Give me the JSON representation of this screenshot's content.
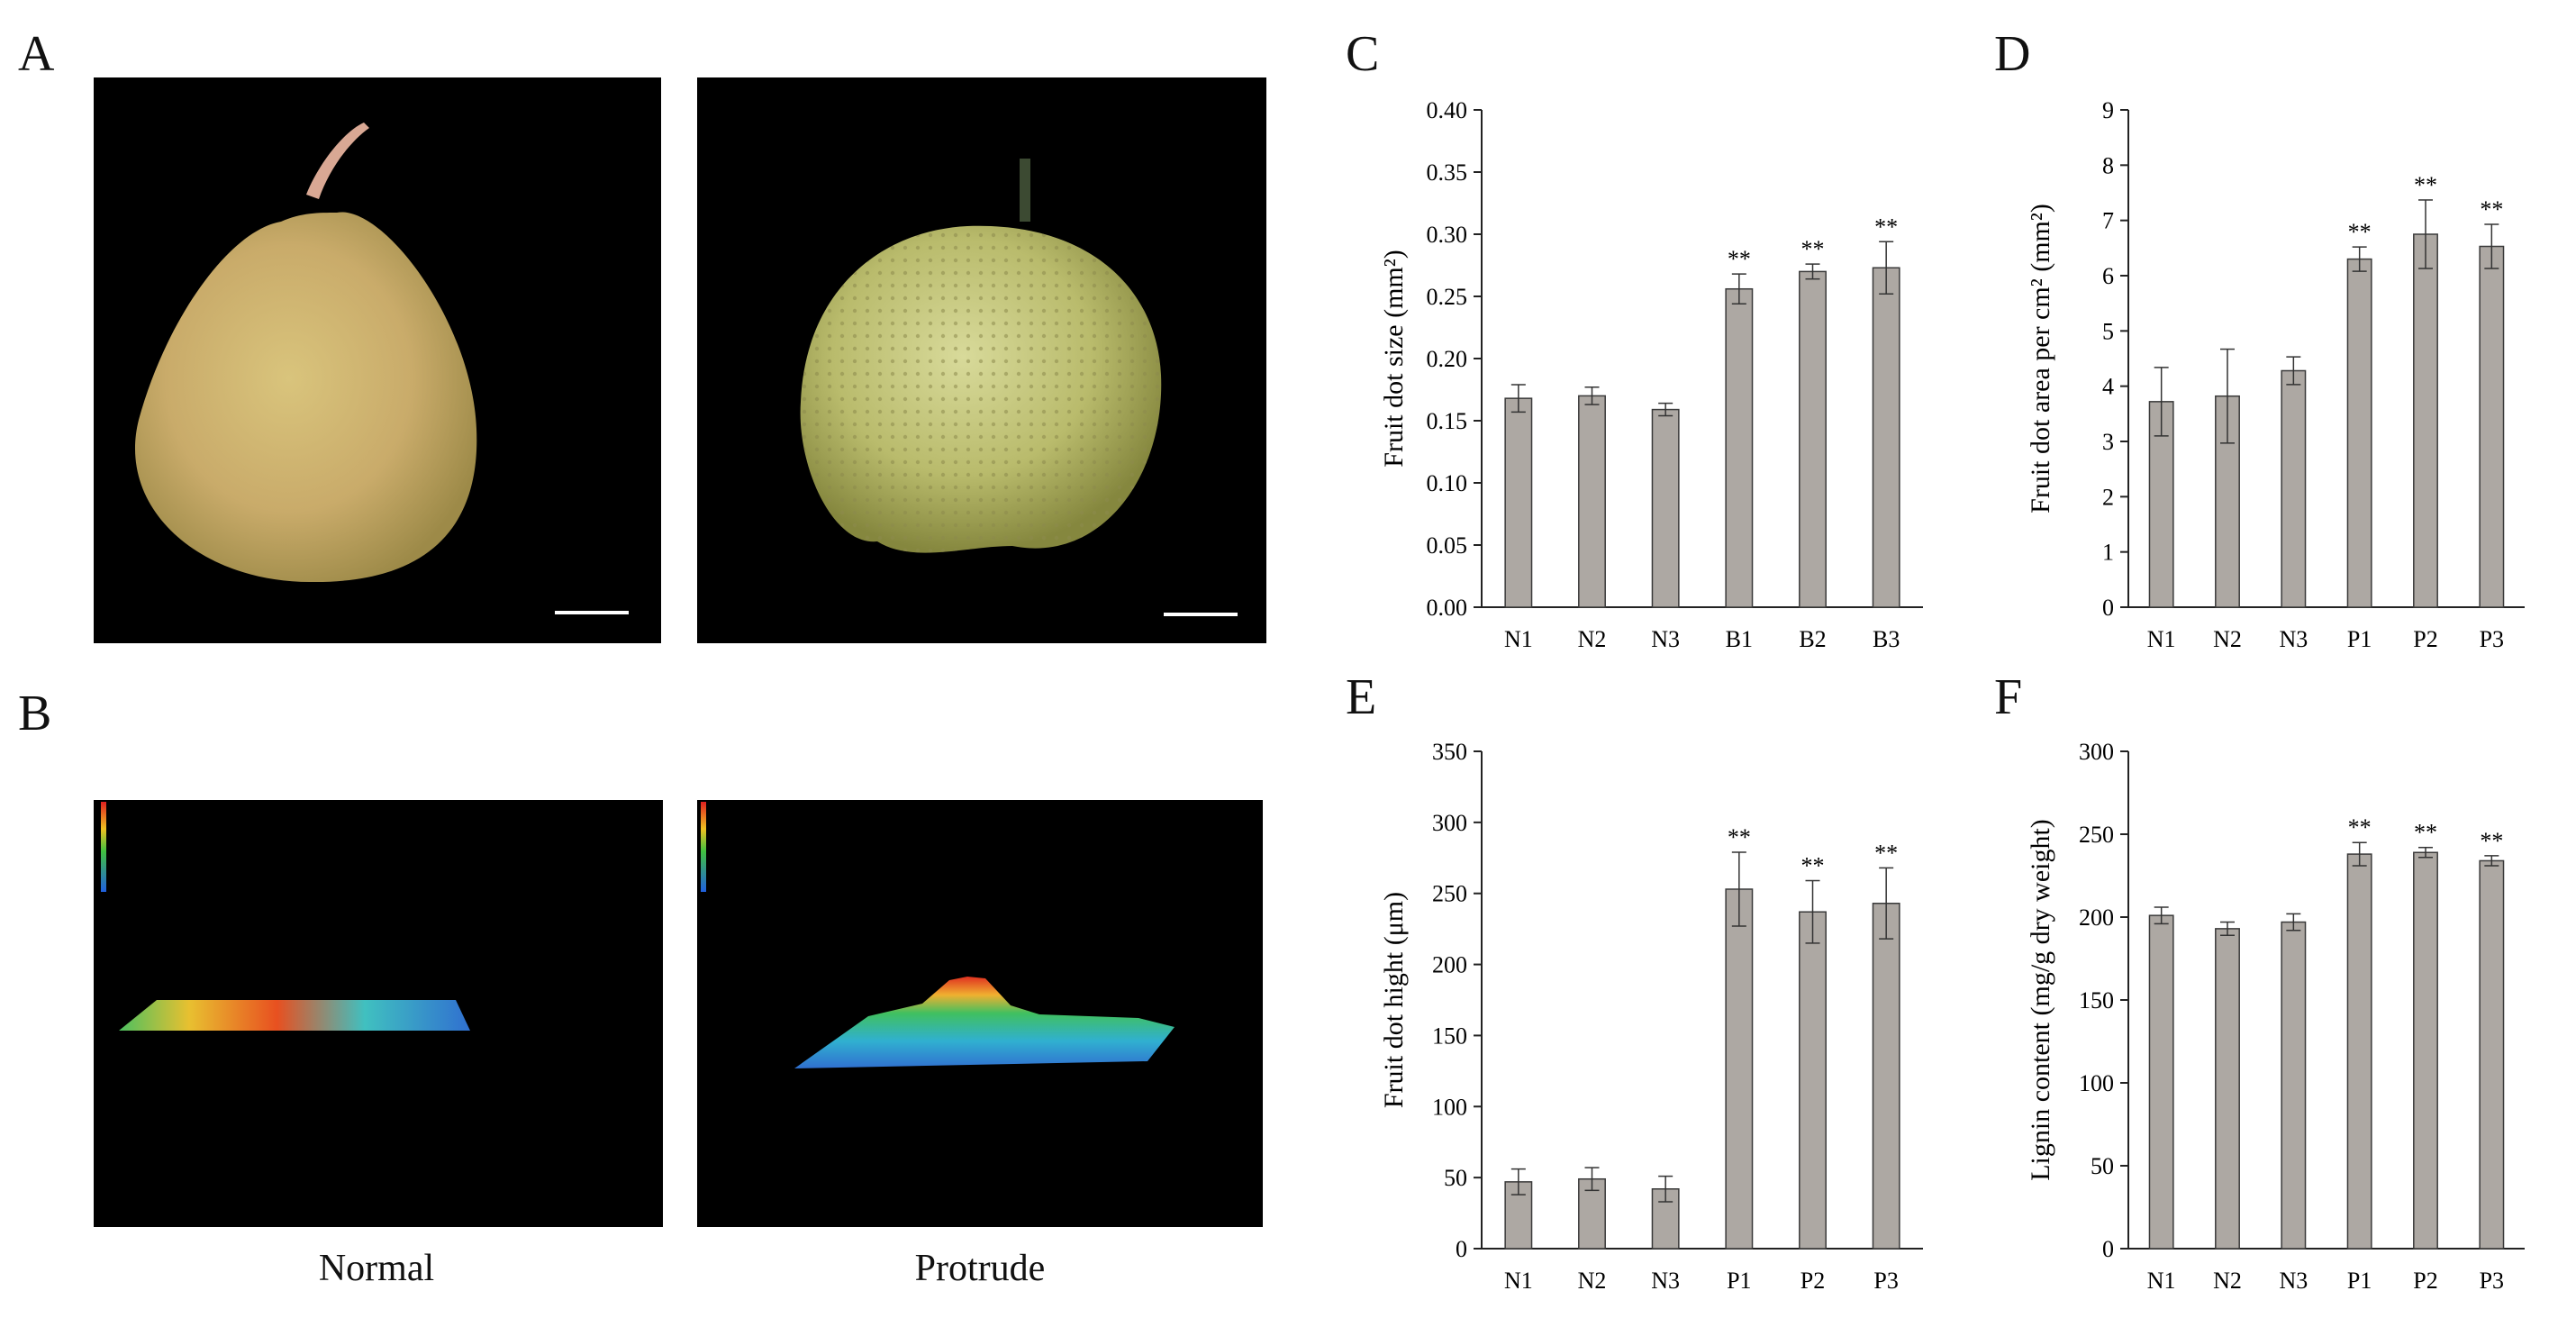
{
  "panels": {
    "A": "A",
    "B": "B",
    "C": "C",
    "D": "D",
    "E": "E",
    "F": "F"
  },
  "captions": {
    "normal": "Normal",
    "protrude": "Protrude"
  },
  "colors": {
    "bar": "#ada8a3",
    "bar_edge": "#3a3a3a",
    "axis": "#222222"
  },
  "chart_data": [
    {
      "id": "C",
      "type": "bar",
      "categories": [
        "N1",
        "N2",
        "N3",
        "B1",
        "B2",
        "B3"
      ],
      "values": [
        0.168,
        0.17,
        0.159,
        0.256,
        0.27,
        0.273
      ],
      "errors": [
        0.011,
        0.007,
        0.005,
        0.012,
        0.006,
        0.021
      ],
      "significance": [
        "",
        "",
        "",
        "**",
        "**",
        "**"
      ],
      "ylabel": "Fruit dot size (mm²)",
      "ylim": [
        0,
        0.4
      ],
      "ticks": [
        "0.00",
        "0.05",
        "0.10",
        "0.15",
        "0.20",
        "0.25",
        "0.30",
        "0.35",
        "0.40"
      ]
    },
    {
      "id": "D",
      "type": "bar",
      "categories": [
        "N1",
        "N2",
        "N3",
        "P1",
        "P2",
        "P3"
      ],
      "values": [
        3.72,
        3.82,
        4.28,
        6.3,
        6.75,
        6.53
      ],
      "errors": [
        0.62,
        0.85,
        0.25,
        0.22,
        0.62,
        0.4
      ],
      "significance": [
        "",
        "",
        "",
        "**",
        "**",
        "**"
      ],
      "ylabel": "Fruit dot area per cm² (mm²)",
      "ylim": [
        0,
        9
      ],
      "ticks": [
        "0",
        "1",
        "2",
        "3",
        "4",
        "5",
        "6",
        "7",
        "8",
        "9"
      ]
    },
    {
      "id": "E",
      "type": "bar",
      "categories": [
        "N1",
        "N2",
        "N3",
        "P1",
        "P2",
        "P3"
      ],
      "values": [
        47,
        49,
        42,
        253,
        237,
        243
      ],
      "errors": [
        9,
        8,
        9,
        26,
        22,
        25
      ],
      "significance": [
        "",
        "",
        "",
        "**",
        "**",
        "**"
      ],
      "ylabel": "Fruit dot hight (μm)",
      "ylim": [
        0,
        350
      ],
      "ticks": [
        "0",
        "50",
        "100",
        "150",
        "200",
        "250",
        "300",
        "350"
      ]
    },
    {
      "id": "F",
      "type": "bar",
      "categories": [
        "N1",
        "N2",
        "N3",
        "P1",
        "P2",
        "P3"
      ],
      "values": [
        201,
        193,
        197,
        238,
        239,
        234
      ],
      "errors": [
        5,
        4,
        5,
        7,
        3,
        3
      ],
      "significance": [
        "",
        "",
        "",
        "**",
        "**",
        "**"
      ],
      "ylabel": "Lignin content (mg/g dry weight)",
      "ylim": [
        0,
        300
      ],
      "ticks": [
        "0",
        "50",
        "100",
        "150",
        "200",
        "250",
        "300"
      ]
    }
  ]
}
